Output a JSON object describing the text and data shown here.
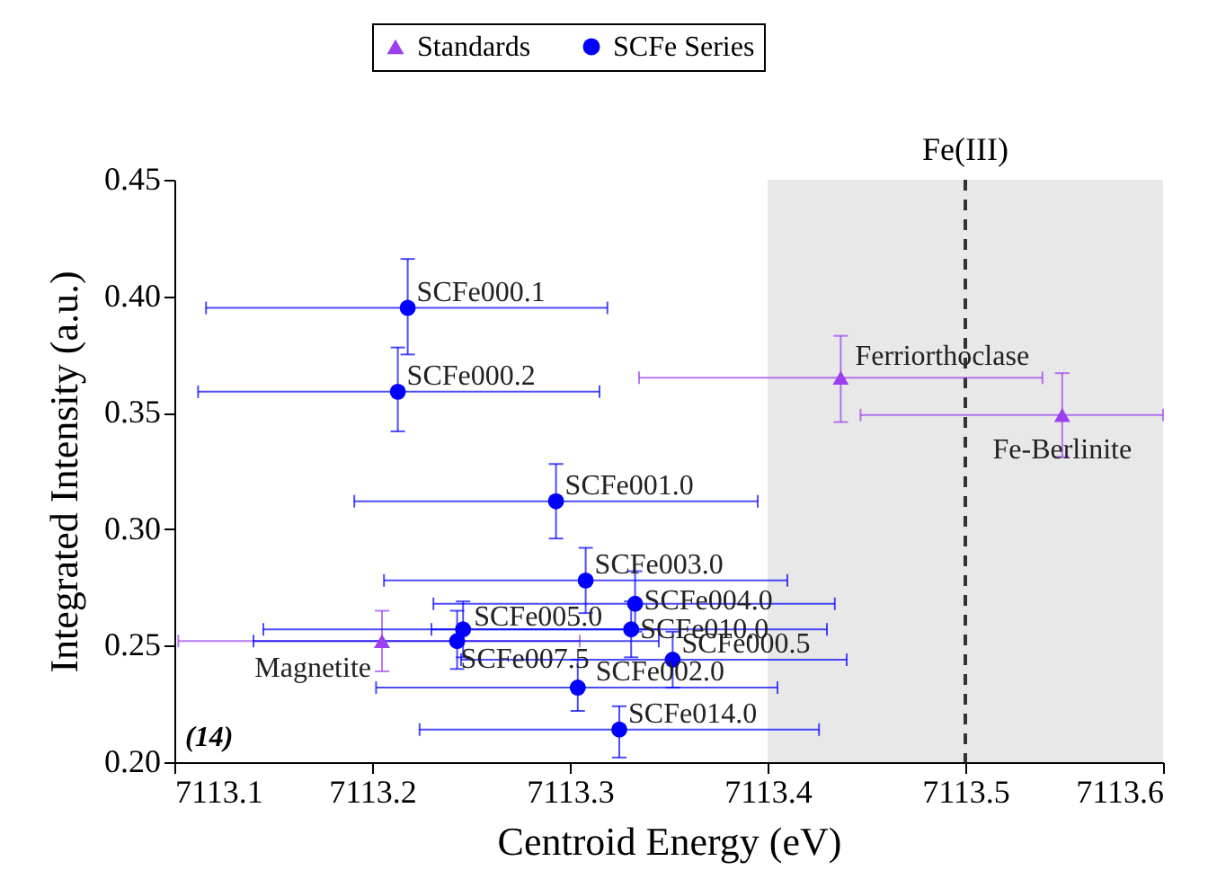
{
  "chart_data": {
    "type": "scatter",
    "xlabel": "Centroid Energy (eV)",
    "ylabel": "Integrated Intensity (a.u.)",
    "xlim": [
      7113.1,
      7113.6
    ],
    "ylim": [
      0.2,
      0.45
    ],
    "xticks": [
      7113.1,
      7113.2,
      7113.3,
      7113.4,
      7113.5,
      7113.6
    ],
    "yticks": [
      {
        "value": 0.2,
        "label": "0.20"
      },
      0.25,
      {
        "value": 0.3,
        "label": "0.30"
      },
      0.35,
      {
        "value": 0.4,
        "label": "0.40"
      },
      0.45
    ],
    "grid": false,
    "legend": "top",
    "series": [
      {
        "name": "Standards",
        "color": "#9b3ff0",
        "marker": "triangle",
        "x": [
          7113.205,
          7113.437,
          7113.549
        ],
        "values": [
          0.252,
          0.365,
          0.349
        ],
        "errors": [
          [
            0.239,
            0.265
          ],
          [
            0.346,
            0.383
          ],
          [
            0.331,
            0.367
          ]
        ],
        "xerrors": [
          [
            7113.102,
            7113.305
          ],
          [
            7113.335,
            7113.539
          ],
          [
            7113.447,
            7113.6
          ]
        ]
      },
      {
        "name": "SCFe Series",
        "color": "#0000ff",
        "marker": "circle",
        "x": [
          7113.218,
          7113.213,
          7113.293,
          7113.308,
          7113.333,
          7113.331,
          7113.246,
          7113.243,
          7113.352,
          7113.304,
          7113.325
        ],
        "values": [
          0.395,
          0.359,
          0.312,
          0.278,
          0.268,
          0.257,
          0.257,
          0.252,
          0.244,
          0.232,
          0.214
        ],
        "errors": [
          [
            0.375,
            0.416
          ],
          [
            0.342,
            0.378
          ],
          [
            0.296,
            0.328
          ],
          [
            0.264,
            0.292
          ],
          [
            0.256,
            0.282
          ],
          [
            0.245,
            0.269
          ],
          [
            0.245,
            0.269
          ],
          [
            0.24,
            0.265
          ],
          [
            0.232,
            0.256
          ],
          [
            0.222,
            0.244
          ],
          [
            0.202,
            0.224
          ]
        ],
        "xerrors": [
          [
            7113.116,
            7113.319
          ],
          [
            7113.112,
            7113.315
          ],
          [
            7113.191,
            7113.395
          ],
          [
            7113.206,
            7113.41
          ],
          [
            7113.231,
            7113.434
          ],
          [
            7113.23,
            7113.43
          ],
          [
            7113.145,
            7113.345
          ],
          [
            7113.14,
            7113.345
          ],
          [
            7113.245,
            7113.44
          ],
          [
            7113.202,
            7113.405
          ],
          [
            7113.224,
            7113.426
          ]
        ]
      }
    ],
    "bands": [
      {
        "axis": "x",
        "from": 7113.4,
        "to": 7113.6,
        "color": "#e8e8e8"
      }
    ],
    "ref_lines": [
      {
        "axis": "x",
        "value": 7113.5,
        "label": "Fe(III)",
        "color": "#333333",
        "line_style": "dashed"
      }
    ],
    "annotations": [
      {
        "text": "SCFe000.1",
        "x": 7113.218,
        "y": 0.395
      },
      {
        "text": "SCFe000.2",
        "x": 7113.213,
        "y": 0.359
      },
      {
        "text": "SCFe001.0",
        "x": 7113.293,
        "y": 0.312
      },
      {
        "text": "SCFe003.0",
        "x": 7113.308,
        "y": 0.278
      },
      {
        "text": "SCFe004.0",
        "x": 7113.333,
        "y": 0.268
      },
      {
        "text": "SCFe010.0",
        "x": 7113.331,
        "y": 0.257
      },
      {
        "text": "SCFe005.0",
        "x": 7113.246,
        "y": 0.257
      },
      {
        "text": "SCFe007.5",
        "x": 7113.243,
        "y": 0.252
      },
      {
        "text": "SCFe000.5",
        "x": 7113.352,
        "y": 0.244
      },
      {
        "text": "SCFe002.0",
        "x": 7113.304,
        "y": 0.232
      },
      {
        "text": "SCFe014.0",
        "x": 7113.325,
        "y": 0.214
      },
      {
        "text": "Magnetite",
        "x": 7113.205,
        "y": 0.252
      },
      {
        "text": "Ferriorthoclase",
        "x": 7113.437,
        "y": 0.365
      },
      {
        "text": "Fe-Berlinite",
        "x": 7113.549,
        "y": 0.349
      },
      "(14)"
    ]
  }
}
